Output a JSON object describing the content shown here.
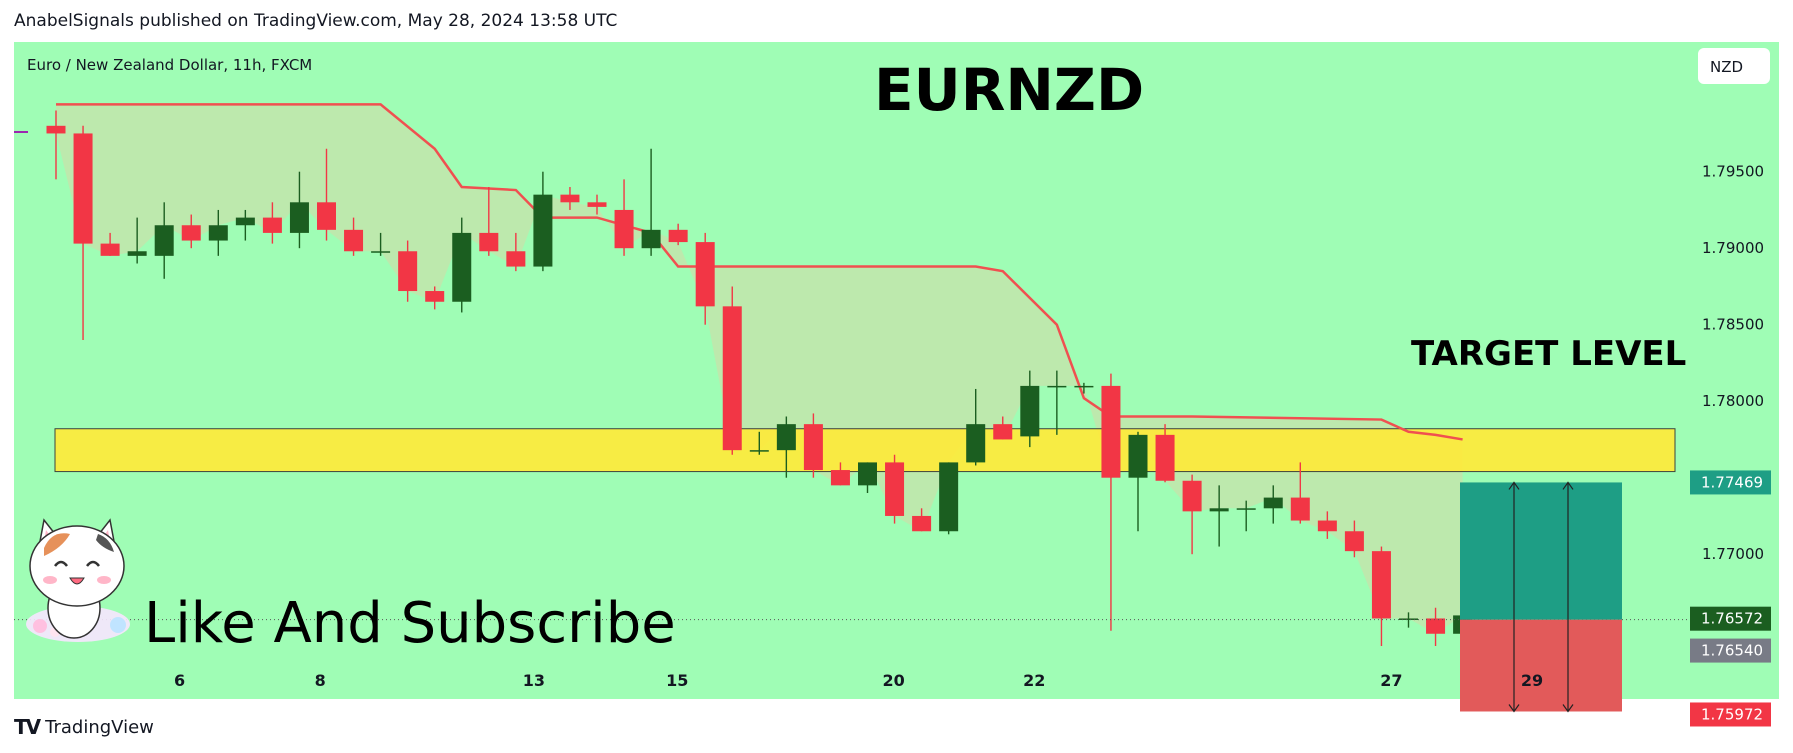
{
  "header": {
    "text": "AnabelSignals published on TradingView.com, May 28, 2024 13:58 UTC"
  },
  "footer": {
    "logo": "TV",
    "name": "TradingView"
  },
  "colors": {
    "background": "#9ffdb5",
    "up_candle": "#1b5e20",
    "down_candle": "#f23645",
    "supertrend": "#f05050",
    "zone": "#ffeb3b",
    "profit_box": "#1e9e85",
    "loss_box": "#e25a5a"
  },
  "chart_data": {
    "type": "candlestick",
    "symbol_info": "Euro / New Zealand Dollar, 11h, FXCM",
    "title": "EURNZD",
    "currency": "NZD",
    "y_ticks": [
      "1.79500",
      "1.79000",
      "1.78500",
      "1.78000",
      "1.77000"
    ],
    "x_ticks": [
      "6",
      "8",
      "13",
      "15",
      "20",
      "22",
      "27",
      "29"
    ],
    "ylim": [
      1.754,
      1.8
    ],
    "candles": [
      [
        1.798,
        1.799,
        1.7945,
        1.7975
      ],
      [
        1.7975,
        1.798,
        1.784,
        1.7903
      ],
      [
        1.7903,
        1.791,
        1.7895,
        1.7895
      ],
      [
        1.7895,
        1.792,
        1.789,
        1.7898
      ],
      [
        1.7895,
        1.793,
        1.788,
        1.7915
      ],
      [
        1.7915,
        1.7922,
        1.79,
        1.7905
      ],
      [
        1.7905,
        1.7925,
        1.7895,
        1.7915
      ],
      [
        1.7915,
        1.7925,
        1.7905,
        1.792
      ],
      [
        1.792,
        1.793,
        1.7903,
        1.791
      ],
      [
        1.791,
        1.795,
        1.79,
        1.793
      ],
      [
        1.793,
        1.7965,
        1.7905,
        1.7912
      ],
      [
        1.7912,
        1.792,
        1.7895,
        1.7898
      ],
      [
        1.7898,
        1.791,
        1.7895,
        1.7898
      ],
      [
        1.7898,
        1.7905,
        1.7865,
        1.7872
      ],
      [
        1.7872,
        1.7875,
        1.786,
        1.7865
      ],
      [
        1.7865,
        1.792,
        1.7858,
        1.791
      ],
      [
        1.791,
        1.794,
        1.7895,
        1.7898
      ],
      [
        1.7898,
        1.791,
        1.7885,
        1.7888
      ],
      [
        1.7888,
        1.795,
        1.7885,
        1.7935
      ],
      [
        1.7935,
        1.794,
        1.7925,
        1.793
      ],
      [
        1.793,
        1.7935,
        1.7922,
        1.7927
      ],
      [
        1.7925,
        1.7945,
        1.7895,
        1.79
      ],
      [
        1.79,
        1.7965,
        1.7895,
        1.7912
      ],
      [
        1.7912,
        1.7916,
        1.7902,
        1.7904
      ],
      [
        1.7904,
        1.791,
        1.785,
        1.7862
      ],
      [
        1.7862,
        1.7875,
        1.7765,
        1.7768
      ],
      [
        1.7768,
        1.778,
        1.7765,
        1.7768
      ],
      [
        1.7768,
        1.779,
        1.775,
        1.7785
      ],
      [
        1.7785,
        1.7792,
        1.775,
        1.7755
      ],
      [
        1.7755,
        1.776,
        1.7745,
        1.7745
      ],
      [
        1.7745,
        1.776,
        1.774,
        1.776
      ],
      [
        1.776,
        1.7765,
        1.772,
        1.7725
      ],
      [
        1.7725,
        1.773,
        1.7715,
        1.7715
      ],
      [
        1.7715,
        1.776,
        1.7713,
        1.776
      ],
      [
        1.776,
        1.7808,
        1.7758,
        1.7785
      ],
      [
        1.7785,
        1.779,
        1.7775,
        1.7775
      ],
      [
        1.7777,
        1.782,
        1.777,
        1.781
      ],
      [
        1.781,
        1.782,
        1.7778,
        1.781
      ],
      [
        1.781,
        1.7812,
        1.7805,
        1.781
      ],
      [
        1.781,
        1.7818,
        1.765,
        1.775
      ],
      [
        1.775,
        1.778,
        1.7715,
        1.7778
      ],
      [
        1.7778,
        1.7785,
        1.7747,
        1.7748
      ],
      [
        1.7748,
        1.7752,
        1.77,
        1.7728
      ],
      [
        1.7728,
        1.7745,
        1.7705,
        1.773
      ],
      [
        1.773,
        1.7735,
        1.7715,
        1.773
      ],
      [
        1.773,
        1.7745,
        1.772,
        1.7737
      ],
      [
        1.7737,
        1.776,
        1.772,
        1.7722
      ],
      [
        1.7722,
        1.7728,
        1.771,
        1.7715
      ],
      [
        1.7715,
        1.7722,
        1.7698,
        1.7702
      ],
      [
        1.7702,
        1.7705,
        1.764,
        1.7658
      ],
      [
        1.7658,
        1.7662,
        1.7652,
        1.7658
      ],
      [
        1.7658,
        1.7665,
        1.764,
        1.7648
      ],
      [
        1.7648,
        1.7665,
        1.7633,
        1.766
      ]
    ],
    "supertrend": [
      [
        0,
        1.7994
      ],
      [
        12,
        1.7994
      ],
      [
        14,
        1.7965
      ],
      [
        15,
        1.794
      ],
      [
        17,
        1.7938
      ],
      [
        18,
        1.792
      ],
      [
        20,
        1.792
      ],
      [
        22,
        1.791
      ],
      [
        23,
        1.7888
      ],
      [
        25,
        1.7888
      ],
      [
        34,
        1.7888
      ],
      [
        35,
        1.7885
      ],
      [
        37,
        1.785
      ],
      [
        38,
        1.7802
      ],
      [
        39,
        1.779
      ],
      [
        42,
        1.779
      ],
      [
        49,
        1.7788
      ],
      [
        50,
        1.778
      ],
      [
        51,
        1.7778
      ],
      [
        52,
        1.7775
      ]
    ],
    "target_level": {
      "label": "TARGET LEVEL",
      "top": 1.7782,
      "bottom": 1.7754
    },
    "position": {
      "entry": 1.77469,
      "current": 1.76572,
      "stop": 1.75972
    },
    "price_labels": [
      {
        "value": "1.77469",
        "color": "#1e9e85"
      },
      {
        "value": "1.76572",
        "color": "#1b5e20"
      },
      {
        "value": "1.76540",
        "color": "#787b86"
      },
      {
        "value": "1.75972",
        "color": "#f23645"
      }
    ],
    "annotation": "Like And Subscribe"
  }
}
